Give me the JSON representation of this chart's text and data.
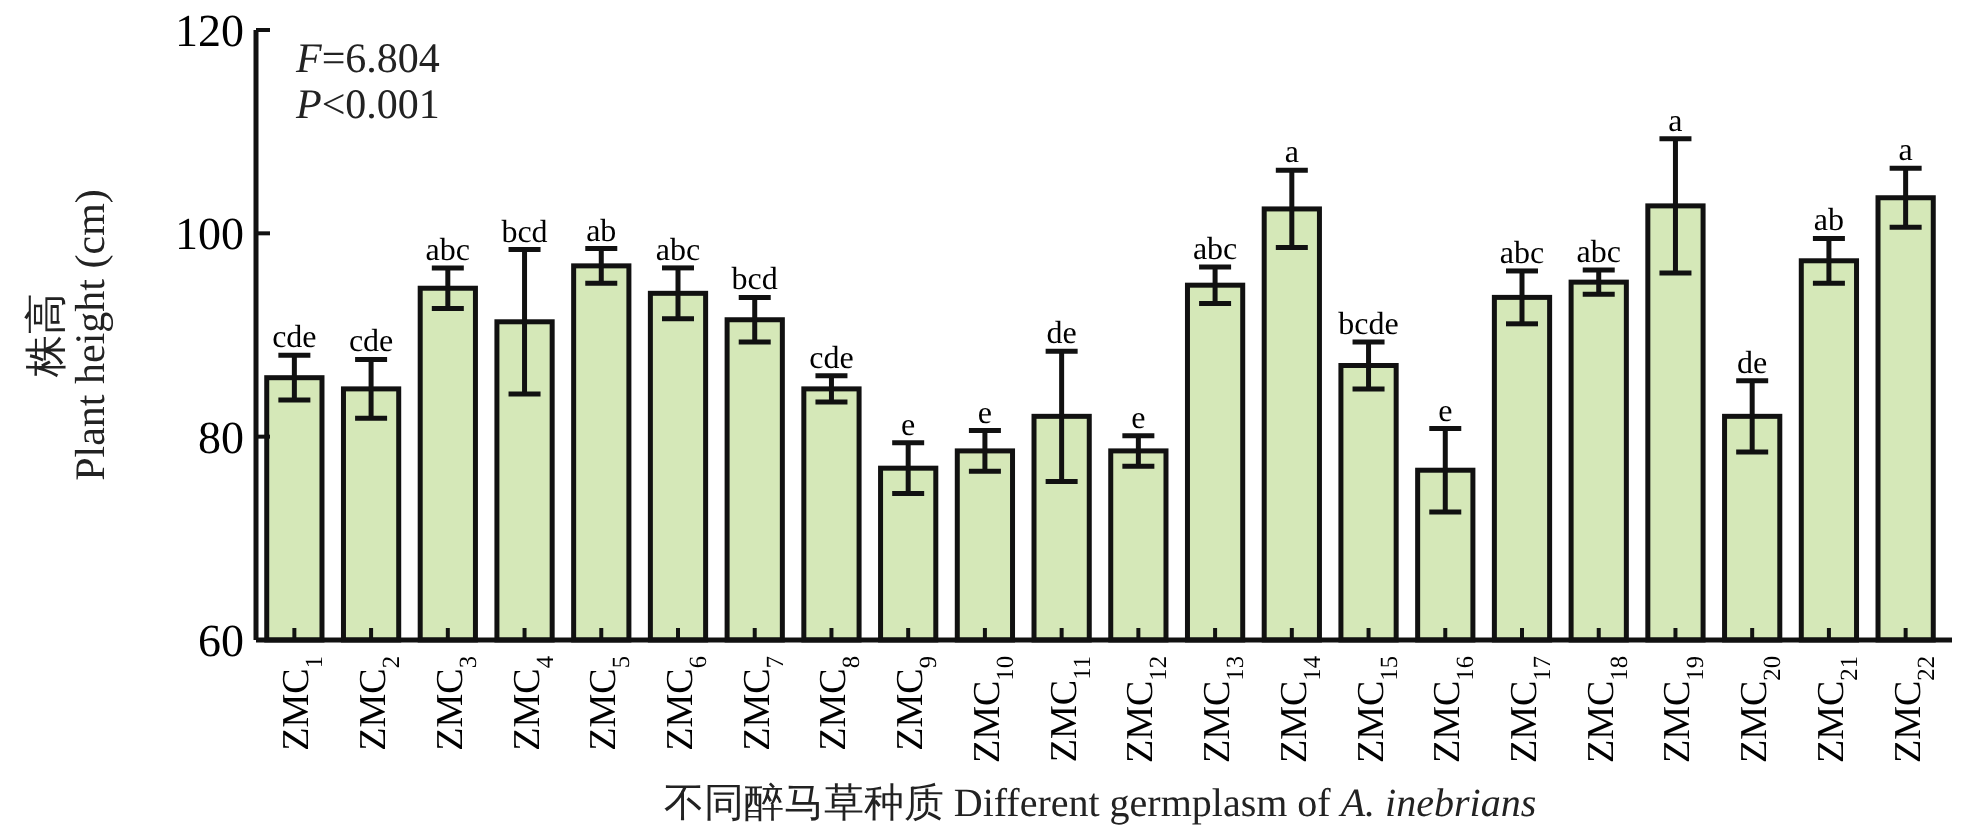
{
  "chart_data": {
    "type": "bar",
    "xlabel": "不同醉马草种质 Different germplasm of *A. inebrians*",
    "ylabel": "株高\nPlant height (cm)",
    "categories": [
      "ZMC$_{1}$",
      "ZMC$_{2}$",
      "ZMC$_{3}$",
      "ZMC$_{4}$",
      "ZMC$_{5}$",
      "ZMC$_{6}$",
      "ZMC$_{7}$",
      "ZMC$_{8}$",
      "ZMC$_{9}$",
      "ZMC$_{10}$",
      "ZMC$_{11}$",
      "ZMC$_{12}$",
      "ZMC$_{13}$",
      "ZMC$_{14}$",
      "ZMC$_{15}$",
      "ZMC$_{16}$",
      "ZMC$_{17}$",
      "ZMC$_{18}$",
      "ZMC$_{19}$",
      "ZMC$_{20}$",
      "ZMC$_{21}$",
      "ZMC$_{22}$"
    ],
    "values": [
      85.8,
      84.7,
      94.6,
      91.3,
      96.8,
      94.1,
      91.5,
      84.7,
      76.9,
      78.6,
      82.0,
      78.6,
      94.9,
      102.4,
      87.0,
      76.7,
      93.7,
      95.2,
      102.7,
      82.0,
      97.3,
      103.5
    ],
    "errors": [
      2.2,
      2.9,
      2.0,
      7.1,
      1.7,
      2.5,
      2.2,
      1.3,
      2.5,
      2.0,
      6.4,
      1.5,
      1.8,
      3.8,
      2.3,
      4.1,
      2.6,
      1.2,
      6.6,
      3.5,
      2.2,
      2.9
    ],
    "value_labels": [
      "cde",
      "cde",
      "abc",
      "bcd",
      "ab",
      "abc",
      "bcd",
      "cde",
      "e",
      "e",
      "de",
      "e",
      "abc",
      "a",
      "bcde",
      "e",
      "abc",
      "abc",
      "a",
      "de",
      "ab",
      "a"
    ],
    "color": "#d5e8b8",
    "ylim": [
      60,
      120
    ],
    "yticks": [
      60,
      80,
      100,
      120
    ],
    "annotations": [
      "*F*=6.804",
      "*P*<0.001"
    ]
  }
}
